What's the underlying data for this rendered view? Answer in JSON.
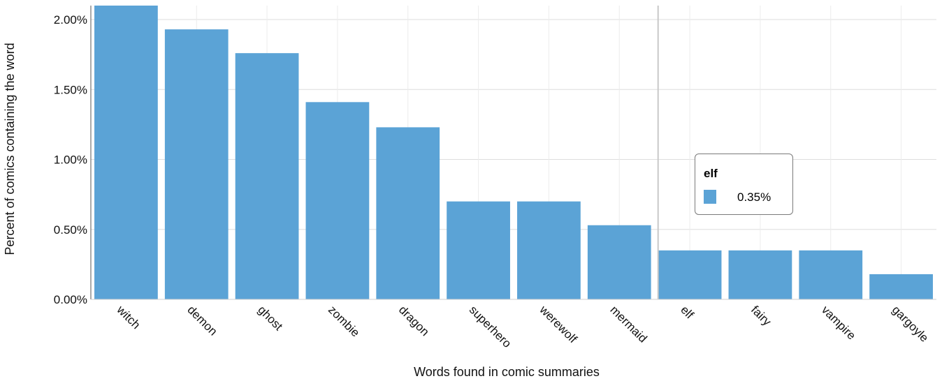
{
  "chart_data": {
    "type": "bar",
    "categories": [
      "witch",
      "demon",
      "ghost",
      "zombie",
      "dragon",
      "superhero",
      "werewolf",
      "mermaid",
      "elf",
      "fairy",
      "vampire",
      "gargoyle"
    ],
    "values": [
      2.21,
      1.93,
      1.76,
      1.41,
      1.23,
      0.7,
      0.7,
      0.53,
      0.35,
      0.35,
      0.35,
      0.18
    ],
    "title": "",
    "xlabel": "Words found in comic summaries",
    "ylabel": "Percent of comics containing the word",
    "ylim": [
      0,
      2.1
    ],
    "yticks": [
      0,
      0.5,
      1.0,
      1.5,
      2.0
    ],
    "ytick_labels": [
      "0.00%",
      "0.50%",
      "1.00%",
      "1.50%",
      "2.00%"
    ],
    "grid": true,
    "bar_color": "#5ba3d6",
    "hover": {
      "category": "elf",
      "value_label": "0.35%"
    }
  }
}
